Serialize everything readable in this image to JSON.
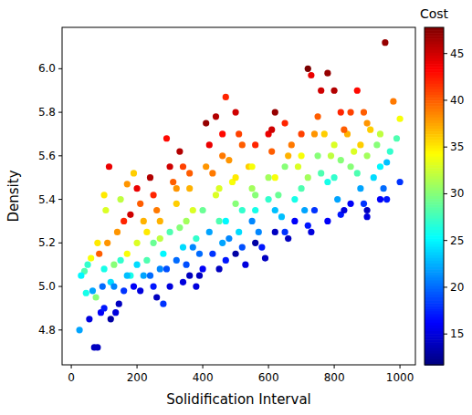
{
  "chart_data": {
    "type": "scatter",
    "x_label": "Solidification Interval",
    "y_label": "Density",
    "colorbar_label": "Cost",
    "x": [
      25,
      70,
      80,
      55,
      40,
      30,
      60,
      75,
      90,
      100,
      95,
      50,
      85,
      110,
      115,
      100,
      105,
      65,
      45,
      120,
      120,
      130,
      140,
      150,
      160,
      170,
      180,
      160,
      145,
      135,
      190,
      200,
      200,
      210,
      220,
      230,
      240,
      250,
      260,
      210,
      180,
      190,
      170,
      240,
      250,
      260,
      270,
      280,
      290,
      280,
      300,
      300,
      290,
      310,
      320,
      330,
      340,
      350,
      360,
      330,
      340,
      360,
      370,
      380,
      390,
      400,
      380,
      410,
      420,
      430,
      440,
      450,
      460,
      470,
      440,
      460,
      480,
      490,
      500,
      510,
      520,
      530,
      470,
      500,
      520,
      540,
      550,
      560,
      570,
      580,
      590,
      600,
      610,
      620,
      630,
      640,
      650,
      660,
      620,
      650,
      670,
      690,
      700,
      710,
      720,
      730,
      720,
      730,
      760,
      780,
      750,
      770,
      790,
      800,
      810,
      820,
      830,
      800,
      820,
      840,
      860,
      870,
      880,
      890,
      900,
      870,
      890,
      910,
      930,
      940,
      950,
      960,
      955,
      980,
      1000,
      990,
      1000,
      970,
      960,
      150,
      200,
      250,
      300,
      350,
      400,
      450,
      500,
      550,
      600,
      650,
      700,
      750,
      800,
      850,
      900,
      920,
      880,
      780,
      720,
      680,
      620,
      560,
      520,
      470,
      420,
      370,
      320,
      270,
      220,
      170,
      130,
      100,
      80,
      230,
      270,
      320,
      360,
      410,
      460,
      510,
      560,
      610,
      660,
      700,
      740,
      830,
      850,
      900,
      940,
      600,
      550,
      480,
      430,
      390,
      340,
      450,
      500,
      560,
      620,
      680,
      740,
      780,
      850,
      900,
      940,
      760,
      820
    ],
    "values": [
      4.8,
      4.72,
      4.72,
      4.85,
      5.07,
      5.05,
      5.13,
      4.95,
      4.88,
      4.9,
      5.0,
      5.1,
      5.15,
      5.2,
      5.55,
      5.42,
      5.35,
      4.98,
      4.97,
      4.85,
      5.02,
      5.1,
      5.25,
      5.4,
      5.3,
      5.15,
      5.05,
      4.98,
      4.92,
      4.88,
      5.0,
      5.2,
      5.45,
      5.38,
      5.3,
      5.12,
      5.05,
      5.0,
      4.95,
      4.98,
      5.33,
      5.52,
      5.47,
      5.5,
      5.42,
      5.35,
      5.22,
      5.15,
      5.08,
      4.92,
      5.0,
      5.55,
      5.68,
      5.48,
      5.38,
      5.27,
      5.18,
      5.1,
      5.05,
      5.62,
      5.55,
      5.45,
      5.35,
      5.22,
      5.15,
      5.08,
      5.0,
      5.75,
      5.65,
      5.52,
      5.42,
      5.3,
      5.2,
      5.12,
      5.78,
      5.7,
      5.58,
      5.48,
      5.38,
      5.25,
      5.18,
      5.1,
      5.87,
      5.8,
      5.65,
      5.55,
      5.45,
      5.35,
      5.25,
      5.18,
      5.13,
      5.7,
      5.62,
      5.5,
      5.42,
      5.32,
      5.25,
      5.22,
      5.8,
      5.75,
      5.65,
      5.55,
      5.45,
      5.35,
      5.28,
      5.25,
      6.0,
      5.97,
      5.9,
      5.98,
      5.78,
      5.7,
      5.6,
      5.5,
      5.4,
      5.33,
      5.35,
      5.9,
      5.8,
      5.7,
      5.62,
      5.52,
      5.45,
      5.38,
      5.32,
      5.9,
      5.8,
      5.72,
      5.65,
      5.55,
      5.45,
      5.4,
      6.12,
      5.85,
      5.77,
      5.68,
      5.48,
      5.62,
      5.57,
      5.12,
      5.1,
      5.2,
      5.25,
      5.3,
      5.35,
      5.45,
      5.5,
      5.55,
      5.5,
      5.55,
      5.6,
      5.6,
      5.65,
      5.55,
      5.6,
      5.5,
      5.65,
      5.48,
      5.5,
      5.4,
      5.35,
      5.42,
      5.35,
      5.3,
      5.25,
      5.18,
      5.12,
      5.08,
      5.05,
      5.05,
      5.0,
      5.08,
      5.2,
      5.25,
      5.3,
      5.45,
      5.52,
      5.55,
      5.6,
      5.7,
      5.65,
      5.72,
      5.6,
      5.7,
      5.7,
      5.72,
      5.8,
      5.75,
      5.7,
      5.4,
      5.3,
      5.22,
      5.15,
      5.05,
      5.02,
      5.08,
      5.15,
      5.2,
      5.25,
      5.3,
      5.35,
      5.3,
      5.38,
      5.35,
      5.4,
      5.52,
      5.58
    ],
    "cost": [
      22,
      14,
      14,
      15,
      28,
      25,
      34,
      30,
      16,
      17,
      20,
      27,
      40,
      38,
      44,
      35,
      33,
      22,
      26,
      13,
      24,
      30,
      38,
      32,
      42,
      34,
      26,
      18,
      14,
      15,
      16,
      33,
      44,
      40,
      37,
      28,
      20,
      17,
      14,
      15,
      45,
      36,
      38,
      46,
      42,
      39,
      32,
      25,
      19,
      18,
      15,
      45,
      43,
      40,
      36,
      30,
      24,
      19,
      14,
      46,
      41,
      37,
      33,
      27,
      20,
      16,
      15,
      47,
      44,
      39,
      33,
      28,
      22,
      17,
      46,
      43,
      38,
      34,
      30,
      24,
      19,
      15,
      42,
      45,
      40,
      36,
      31,
      26,
      21,
      17,
      14,
      44,
      40,
      34,
      29,
      23,
      18,
      14,
      47,
      42,
      39,
      33,
      28,
      22,
      17,
      15,
      48,
      44,
      45,
      47,
      40,
      36,
      32,
      27,
      22,
      17,
      15,
      46,
      42,
      37,
      33,
      28,
      22,
      18,
      15,
      43,
      40,
      36,
      30,
      25,
      20,
      17,
      47,
      39,
      34,
      28,
      18,
      27,
      23,
      27,
      24,
      29,
      28,
      31,
      29,
      33,
      35,
      34,
      31,
      30,
      34,
      30,
      33,
      30,
      31,
      24,
      36,
      26,
      31,
      26,
      23,
      30,
      27,
      25,
      22,
      21,
      20,
      21,
      22,
      23,
      21,
      26,
      35,
      35,
      37,
      38,
      40,
      38,
      39,
      41,
      42,
      45,
      37,
      41,
      38,
      40,
      41,
      38,
      32,
      27,
      21,
      21,
      18,
      14,
      15,
      14,
      13,
      13,
      14,
      16,
      18,
      16,
      16,
      14,
      16,
      28,
      30
    ],
    "xlim": [
      -28,
      1047
    ],
    "xticks": [
      0,
      200,
      400,
      600,
      800,
      1000
    ],
    "ylim": [
      4.64,
      6.19
    ],
    "yticks": [
      4.8,
      {
        "value": 5.0,
        "label": "5.0"
      },
      5.2,
      5.4,
      5.6,
      5.8,
      {
        "value": 6.0,
        "label": "6.0"
      }
    ],
    "clim": [
      11.7,
      47.8
    ],
    "cticks": [
      15,
      20,
      25,
      30,
      35,
      40,
      45
    ]
  }
}
